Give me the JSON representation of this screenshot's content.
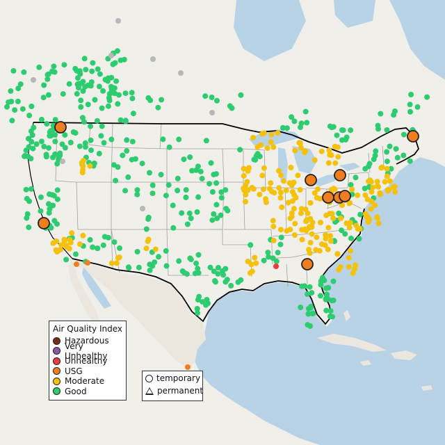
{
  "colors": {
    "water": "#b9d3e6",
    "land": "#f1efea",
    "land_alt": "#ebe7df",
    "border": "#000000",
    "state_line": "#a0a0a0",
    "aqi": {
      "hazardous": "#7b2b1a",
      "very_unhealthy": "#8c58a5",
      "unhealthy": "#ee3b3b",
      "usg": "#f07d1f",
      "moderate": "#f4c20d",
      "good": "#2ecc71",
      "no_data": "#b8b8b8"
    }
  },
  "aqi_legend": {
    "title": "Air Quality Index",
    "items": [
      {
        "key": "hazardous",
        "label": "Hazardous",
        "color": "#7b2b1a"
      },
      {
        "key": "very_unhealthy",
        "label": "Very Unhealthy",
        "color": "#8c58a5"
      },
      {
        "key": "unhealthy",
        "label": "Unhealthy",
        "color": "#ee3b3b"
      },
      {
        "key": "usg",
        "label": "USG",
        "color": "#f07d1f"
      },
      {
        "key": "moderate",
        "label": "Moderate",
        "color": "#f4c20d"
      },
      {
        "key": "good",
        "label": "Good",
        "color": "#2ecc71"
      }
    ]
  },
  "site_legend": {
    "items": [
      {
        "shape": "circle",
        "label": "temporary"
      },
      {
        "shape": "triangle",
        "label": "permanent"
      }
    ]
  }
}
